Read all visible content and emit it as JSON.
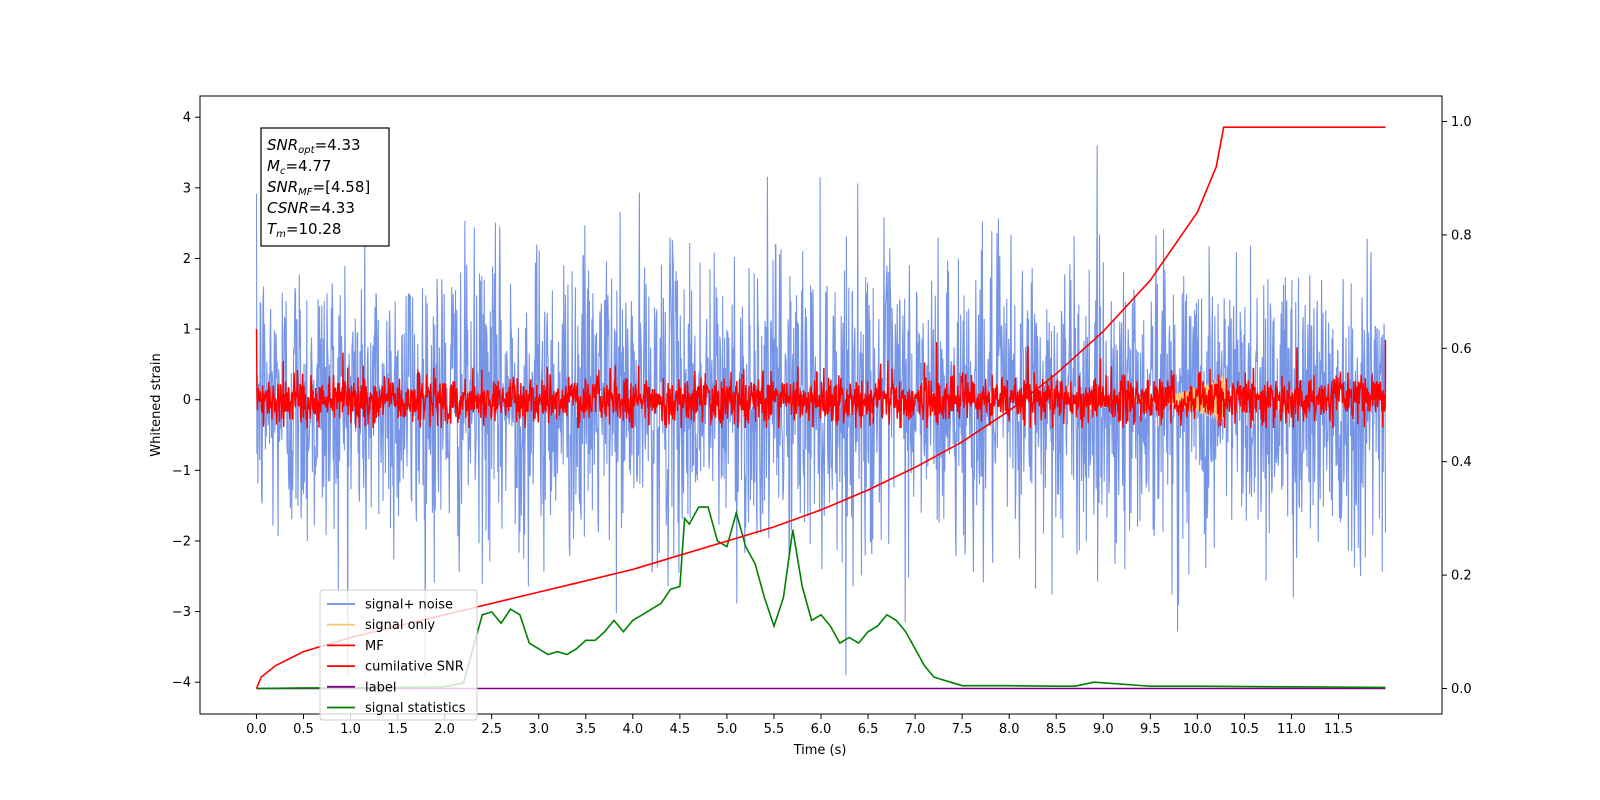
{
  "chart_data": {
    "type": "line",
    "xlabel": "Time (s)",
    "ylabel": "Whitened strain",
    "xlim": [
      -0.6,
      12.6
    ],
    "ylim": [
      -4.45,
      4.3
    ],
    "y2lim": [
      -0.045,
      1.045
    ],
    "x_ticks": [
      0.0,
      0.5,
      1.0,
      1.5,
      2.0,
      2.5,
      3.0,
      3.5,
      4.0,
      4.5,
      5.0,
      5.5,
      6.0,
      6.5,
      7.0,
      7.5,
      8.0,
      8.5,
      9.0,
      9.5,
      10.0,
      10.5,
      11.0,
      11.5
    ],
    "x_tick_labels": [
      "0.0",
      "0.5",
      "1.0",
      "1.5",
      "2.0",
      "2.5",
      "3.0",
      "3.5",
      "4.0",
      "4.5",
      "5.0",
      "5.5",
      "6.0",
      "6.5",
      "7.0",
      "7.5",
      "8.0",
      "8.5",
      "9.0",
      "9.5",
      "10.0",
      "10.5",
      "11.0",
      "11.5"
    ],
    "y_ticks": [
      4,
      3,
      2,
      1,
      0,
      -1,
      -2,
      -3,
      -4
    ],
    "y_tick_labels": [
      "4",
      "3",
      "2",
      "1",
      "0",
      "−1",
      "−2",
      "−3",
      "−4"
    ],
    "y2_ticks": [
      1.0,
      0.8,
      0.6,
      0.4,
      0.2,
      0.0
    ],
    "y2_tick_labels": [
      "1.0",
      "0.8",
      "0.6",
      "0.4",
      "0.2",
      "0.0"
    ],
    "grid": false,
    "legend_position": "lower-left",
    "colors": {
      "signal_noise": "#6f8fe6",
      "signal_only": "#f5c97a",
      "mf": "#ff0000",
      "cumulative": "#ff0000",
      "label": "#800080",
      "statistics": "#008000"
    },
    "series": [
      {
        "name": "signal+ noise",
        "axis": "left",
        "description_range": [
          -3.9,
          3.9
        ]
      },
      {
        "name": "signal only",
        "axis": "left"
      },
      {
        "name": "MF",
        "axis": "left"
      },
      {
        "name": "cumilative SNR",
        "axis": "right",
        "x": [
          0.0,
          0.05,
          0.2,
          0.5,
          1.0,
          1.5,
          2.0,
          2.5,
          3.0,
          3.5,
          4.0,
          4.5,
          5.0,
          5.5,
          6.0,
          6.5,
          7.0,
          7.5,
          8.0,
          8.5,
          9.0,
          9.5,
          10.0,
          10.2,
          10.28,
          12.0
        ],
        "values": [
          0.0,
          0.02,
          0.04,
          0.065,
          0.09,
          0.11,
          0.13,
          0.15,
          0.17,
          0.19,
          0.21,
          0.235,
          0.26,
          0.285,
          0.315,
          0.35,
          0.39,
          0.435,
          0.49,
          0.555,
          0.63,
          0.72,
          0.84,
          0.92,
          0.99,
          0.99
        ]
      },
      {
        "name": "label",
        "axis": "right",
        "x": [
          0.0,
          12.0
        ],
        "values": [
          0.0,
          0.0
        ]
      },
      {
        "name": "signal statistics",
        "axis": "right",
        "x": [
          0.0,
          0.5,
          1.0,
          1.5,
          2.0,
          2.2,
          2.4,
          2.5,
          2.6,
          2.7,
          2.8,
          2.9,
          3.0,
          3.1,
          3.2,
          3.3,
          3.4,
          3.5,
          3.6,
          3.7,
          3.8,
          3.9,
          4.0,
          4.1,
          4.2,
          4.3,
          4.4,
          4.5,
          4.55,
          4.6,
          4.7,
          4.8,
          4.9,
          5.0,
          5.1,
          5.2,
          5.3,
          5.4,
          5.5,
          5.6,
          5.7,
          5.8,
          5.9,
          6.0,
          6.1,
          6.2,
          6.3,
          6.4,
          6.5,
          6.6,
          6.7,
          6.8,
          6.9,
          7.0,
          7.1,
          7.2,
          7.3,
          7.4,
          7.5,
          7.6,
          8.0,
          8.5,
          8.7,
          8.9,
          9.0,
          9.5,
          10.0,
          11.0,
          12.0
        ],
        "values": [
          0.0,
          0.001,
          0.001,
          0.002,
          0.003,
          0.01,
          0.13,
          0.135,
          0.115,
          0.14,
          0.13,
          0.08,
          0.07,
          0.06,
          0.065,
          0.06,
          0.07,
          0.085,
          0.085,
          0.1,
          0.12,
          0.1,
          0.12,
          0.13,
          0.14,
          0.15,
          0.175,
          0.18,
          0.3,
          0.29,
          0.32,
          0.32,
          0.26,
          0.25,
          0.31,
          0.25,
          0.22,
          0.16,
          0.11,
          0.16,
          0.28,
          0.18,
          0.12,
          0.13,
          0.11,
          0.08,
          0.09,
          0.08,
          0.1,
          0.11,
          0.13,
          0.12,
          0.1,
          0.07,
          0.04,
          0.02,
          0.015,
          0.01,
          0.005,
          0.005,
          0.005,
          0.004,
          0.004,
          0.011,
          0.01,
          0.004,
          0.004,
          0.003,
          0.002
        ]
      }
    ]
  },
  "legend": {
    "items": [
      {
        "label": "signal+ noise",
        "color": "#6f8fe6"
      },
      {
        "label": "signal only",
        "color": "#f5c97a"
      },
      {
        "label": "MF",
        "color": "#ff0000"
      },
      {
        "label": "cumilative SNR",
        "color": "#ff0000"
      },
      {
        "label": "label",
        "color": "#800080"
      },
      {
        "label": "signal statistics",
        "color": "#008000"
      }
    ]
  },
  "info_box": {
    "lines": [
      {
        "main": "SNR",
        "sub": "opt",
        "value": "=4.33"
      },
      {
        "main": "M",
        "sub": "c",
        "value": "=4.77"
      },
      {
        "main": "SNR",
        "sub": "MF",
        "value": "=[4.58]"
      },
      {
        "main": "CSNR",
        "sub": "",
        "value": "=4.33"
      },
      {
        "main": "T",
        "sub": "m",
        "value": "=10.28"
      }
    ]
  }
}
